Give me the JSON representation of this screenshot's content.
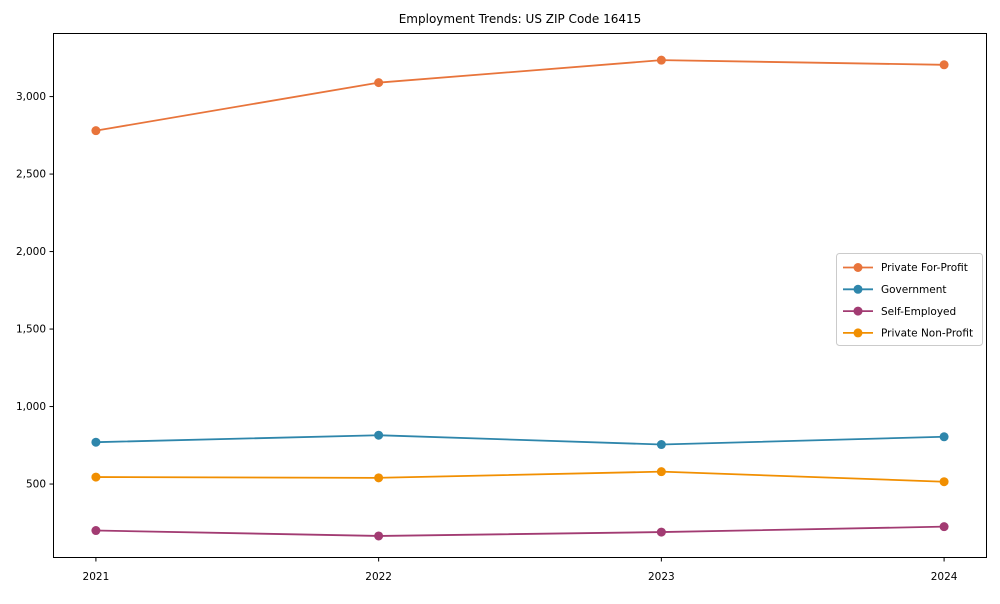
{
  "chart_data": {
    "type": "line",
    "title": "Employment Trends: US ZIP Code 16415",
    "categories": [
      "2021",
      "2022",
      "2023",
      "2024"
    ],
    "series": [
      {
        "name": "Private For-Profit",
        "color": "#E8743B",
        "values": [
          2780,
          3090,
          3235,
          3205
        ]
      },
      {
        "name": "Government",
        "color": "#2E86AB",
        "values": [
          770,
          815,
          755,
          805
        ]
      },
      {
        "name": "Self-Employed",
        "color": "#A23B72",
        "values": [
          200,
          165,
          190,
          225
        ]
      },
      {
        "name": "Private Non-Profit",
        "color": "#F18F01",
        "values": [
          545,
          540,
          580,
          515
        ]
      }
    ],
    "xlabel": "",
    "ylabel": "",
    "yticks": [
      500,
      1000,
      1500,
      2000,
      2500,
      3000
    ],
    "ytick_labels": [
      "500",
      "1,000",
      "1,500",
      "2,000",
      "2,500",
      "3,000"
    ],
    "ylim": [
      26,
      3407
    ],
    "grid": false,
    "legend_position": "middle-right",
    "marker": "circle",
    "axis_color": "#000000",
    "legend_border_color": "#cbcbcb",
    "background_color": "#ffffff"
  }
}
